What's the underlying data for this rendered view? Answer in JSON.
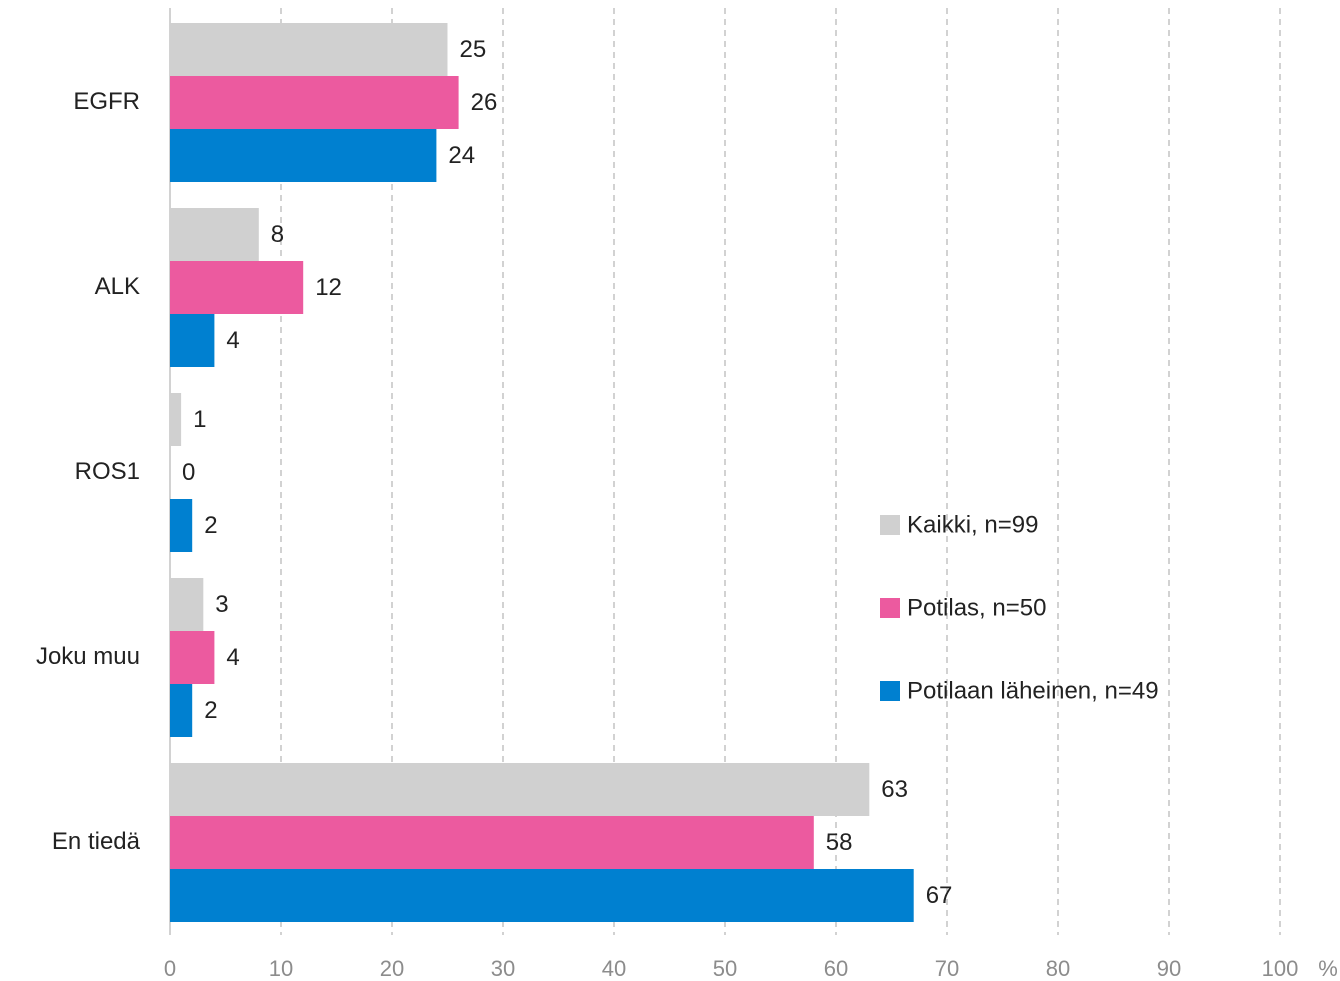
{
  "chart_data": {
    "type": "hbar",
    "categories": [
      "EGFR",
      "ALK",
      "ROS1",
      "Joku muu",
      "En tiedä"
    ],
    "series": [
      {
        "name": "Kaikki, n=99",
        "color": "#d0d0d0",
        "values": [
          25,
          8,
          1,
          3,
          63
        ]
      },
      {
        "name": "Potilas, n=50",
        "color": "#ec5a9f",
        "values": [
          26,
          12,
          0,
          4,
          58
        ]
      },
      {
        "name": "Potilaan läheinen, n=49",
        "color": "#0080d0",
        "values": [
          24,
          4,
          2,
          2,
          67
        ]
      }
    ],
    "xlim": [
      0,
      100
    ],
    "xticks": [
      0,
      10,
      20,
      30,
      40,
      50,
      60,
      70,
      80,
      90,
      100
    ],
    "xlabel": "%",
    "grid": true,
    "legend": "right"
  }
}
